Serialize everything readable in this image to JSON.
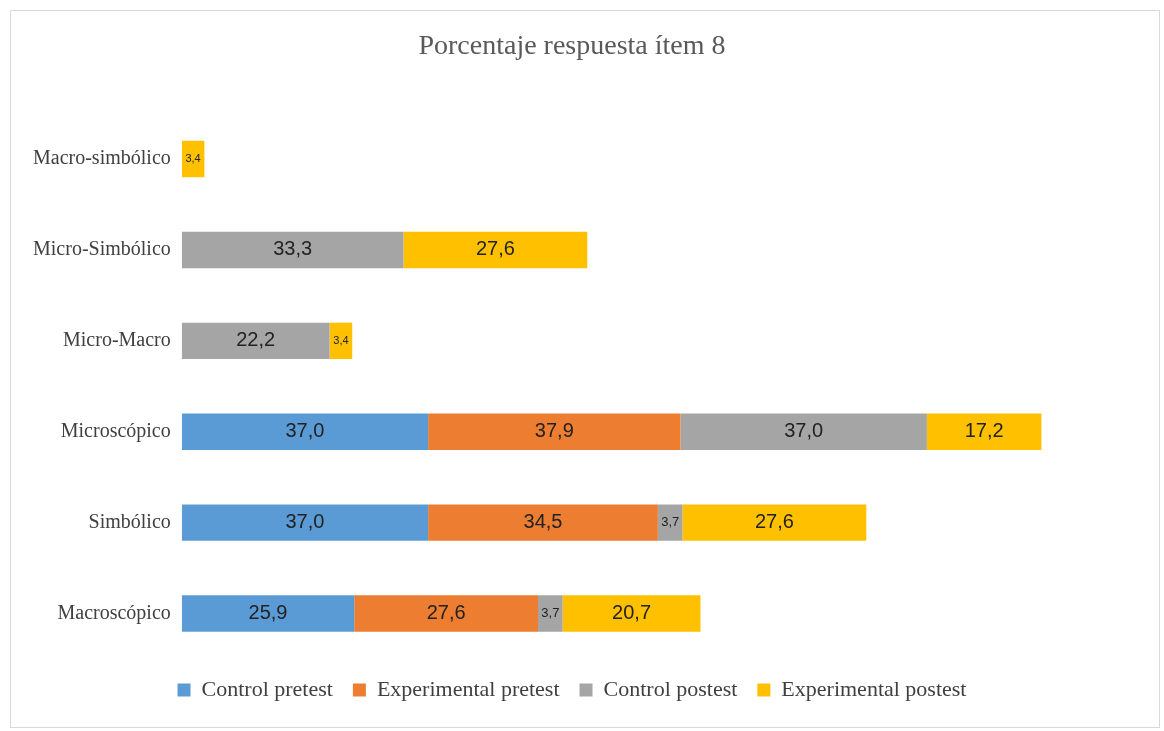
{
  "chart_data": {
    "type": "bar",
    "title": "Porcentaje respuesta ítem 8",
    "orientation": "horizontal",
    "stacked": true,
    "legend": "bottom",
    "tick_labels": "y",
    "categories": [
      "Macro-simbólico",
      "Micro-Simbólico",
      "Micro-Macro",
      "Microscópico",
      "Simbólico",
      "Macroscópico"
    ],
    "series": [
      {
        "name": "Control pretest",
        "color": "#5b9bd5",
        "values": [
          null,
          null,
          null,
          37.0,
          37.0,
          25.9
        ],
        "value_labels": [
          null,
          null,
          null,
          "37,0",
          "37,0",
          "25,9"
        ]
      },
      {
        "name": "Experimental pretest",
        "color": "#ed7d31",
        "values": [
          null,
          null,
          null,
          37.9,
          34.5,
          27.6
        ],
        "value_labels": [
          null,
          null,
          null,
          "37,9",
          "34,5",
          "27,6"
        ]
      },
      {
        "name": "Control postest",
        "color": "#a5a5a5",
        "values": [
          null,
          33.3,
          22.2,
          37.0,
          3.7,
          3.7
        ],
        "value_labels": [
          null,
          "33,3",
          "22,2",
          "37,0",
          "3,7",
          "3,7"
        ]
      },
      {
        "name": "Experimental postest",
        "color": "#ffc000",
        "values": [
          3.4,
          27.6,
          3.4,
          17.2,
          27.6,
          20.7
        ],
        "value_labels": [
          "3,4",
          "27,6",
          "3,4",
          "17,2",
          "27,6",
          "20,7"
        ]
      }
    ]
  }
}
